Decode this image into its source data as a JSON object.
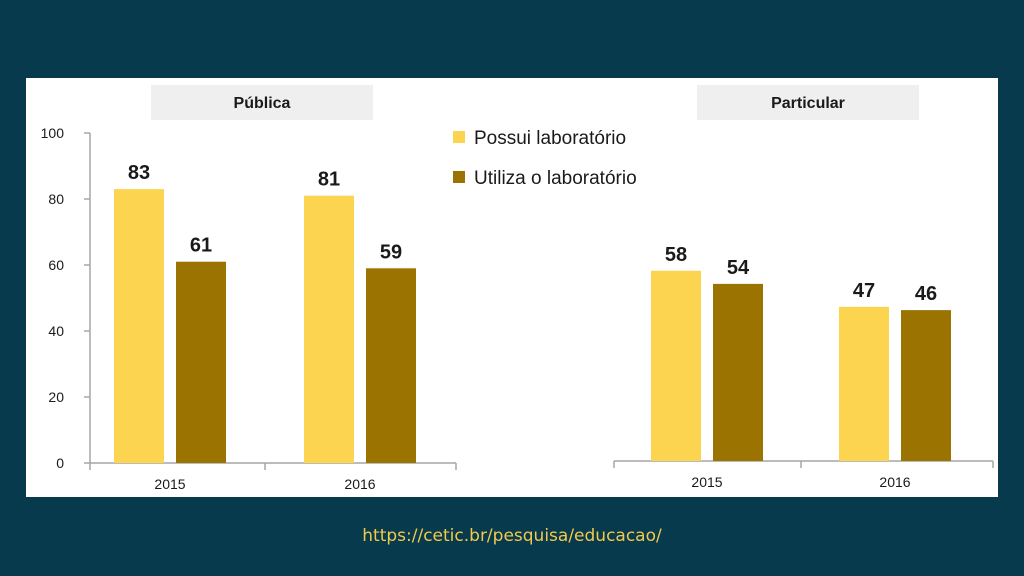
{
  "chart_data": [
    {
      "type": "bar",
      "title": "Pública",
      "categories": [
        "2015",
        "2016"
      ],
      "series": [
        {
          "name": "Possui laboratório",
          "values": [
            83,
            81
          ]
        },
        {
          "name": "Utiliza o laboratório",
          "values": [
            61,
            59
          ]
        }
      ],
      "ylim": [
        0,
        100
      ],
      "yticks": [
        0,
        20,
        40,
        60,
        80,
        100
      ],
      "grid": false,
      "legend": "top-right"
    },
    {
      "type": "bar",
      "title": "Particular",
      "categories": [
        "2015",
        "2016"
      ],
      "series": [
        {
          "name": "Possui laboratório",
          "values": [
            58,
            47
          ]
        },
        {
          "name": "Utiliza o laboratório",
          "values": [
            54,
            46
          ]
        }
      ],
      "ylim": [
        0,
        100
      ],
      "grid": false
    }
  ],
  "colors": {
    "possui": "#fdd44f",
    "utiliza": "#9a7300",
    "header_bg": "#efefef",
    "axis": "#a6a6a6"
  },
  "footer": {
    "url": "https://cetic.br/pesquisa/educacao/"
  }
}
